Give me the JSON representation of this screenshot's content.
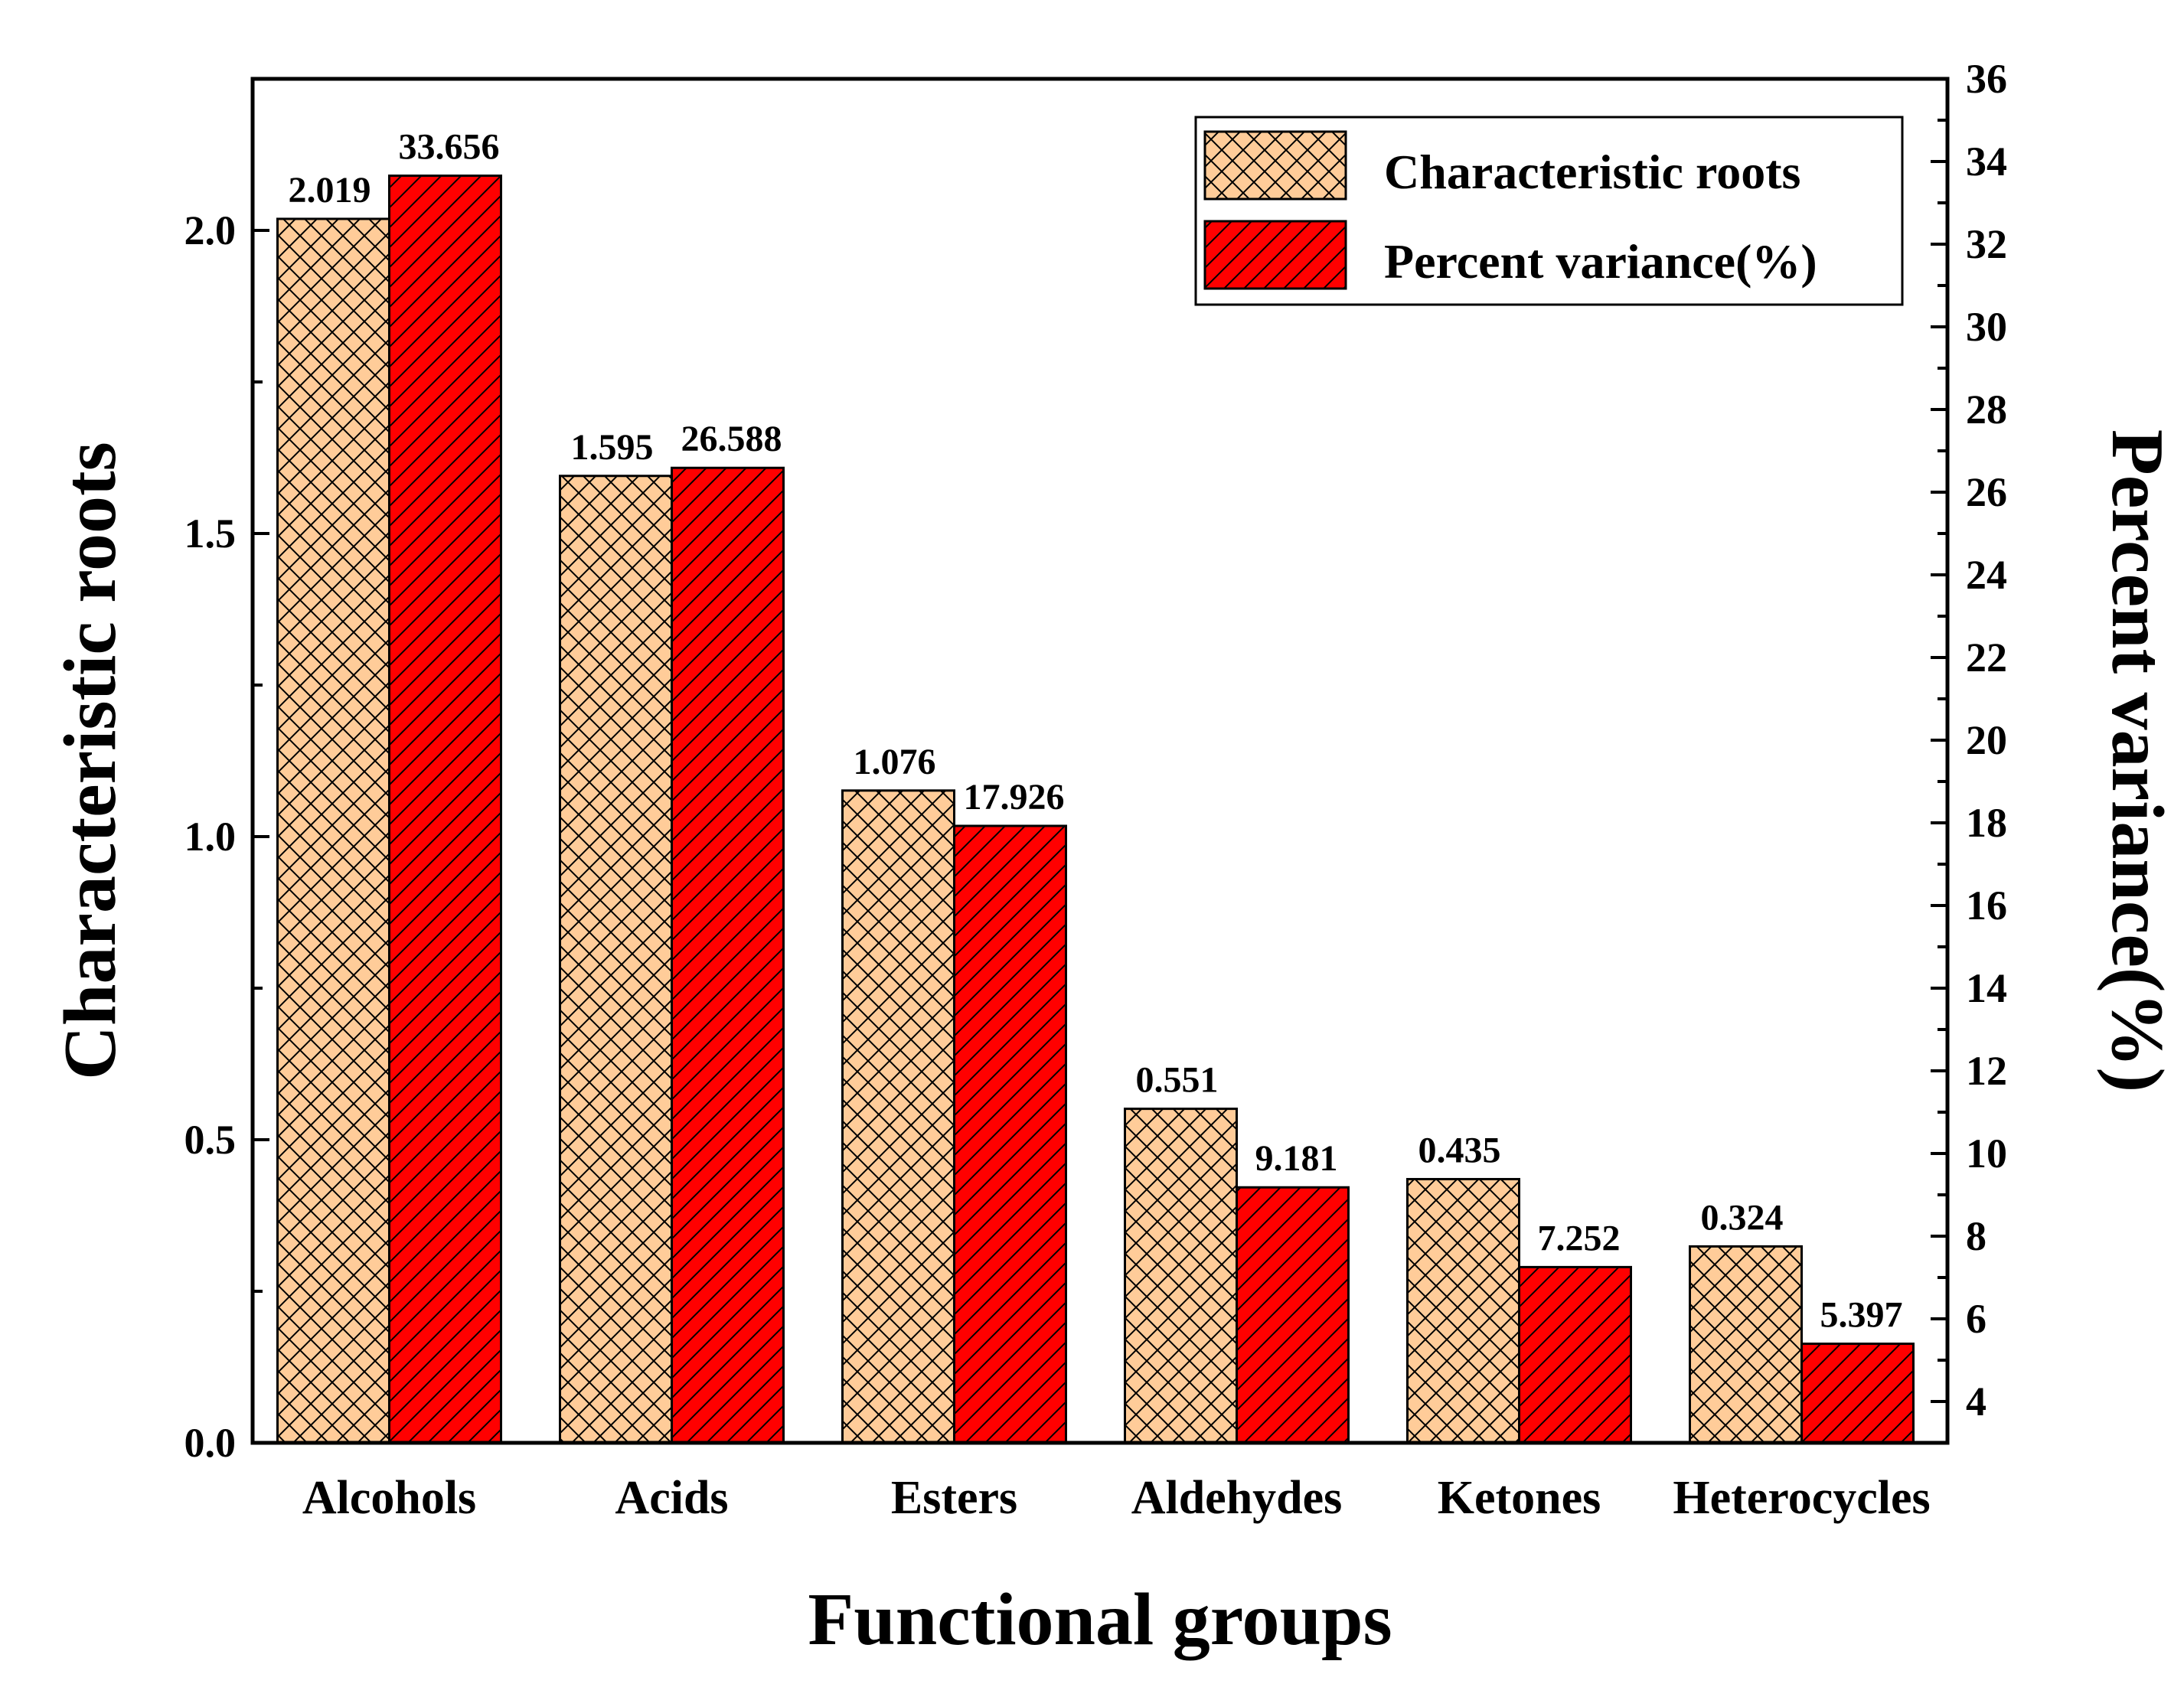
{
  "chart_data": {
    "type": "bar",
    "categories": [
      "Alcohols",
      "Acids",
      "Esters",
      "Aldehydes",
      "Ketones",
      "Heterocycles"
    ],
    "series": [
      {
        "name": "Characteristic roots",
        "axis": "left",
        "values": [
          2.019,
          1.595,
          1.076,
          0.551,
          0.435,
          0.324
        ],
        "labels": [
          "2.019",
          "1.595",
          "1.076",
          "0.551",
          "0.435",
          "0.324"
        ],
        "fill": "#FFCC99",
        "pattern": "crosshatch"
      },
      {
        "name": "Percent variance(%)",
        "axis": "right",
        "values": [
          33.656,
          26.588,
          17.926,
          9.181,
          7.252,
          5.397
        ],
        "labels": [
          "33.656",
          "26.588",
          "17.926",
          "9.181",
          "7.252",
          "5.397"
        ],
        "fill": "#FF0000",
        "pattern": "diagonal"
      }
    ],
    "xlabel": "Functional groups",
    "ylabel": "Characteristic roots",
    "y2label": "Percent variance(%)",
    "ylim": [
      0,
      2.25
    ],
    "yticks": [
      "0.0",
      "0.5",
      "1.0",
      "1.5",
      "2.0"
    ],
    "y2lim": [
      3,
      36
    ],
    "y2ticks": [
      "4",
      "6",
      "8",
      "10",
      "12",
      "14",
      "16",
      "18",
      "20",
      "22",
      "24",
      "26",
      "28",
      "30",
      "32",
      "34",
      "36"
    ],
    "legend_position": "top-right",
    "grid": false
  }
}
